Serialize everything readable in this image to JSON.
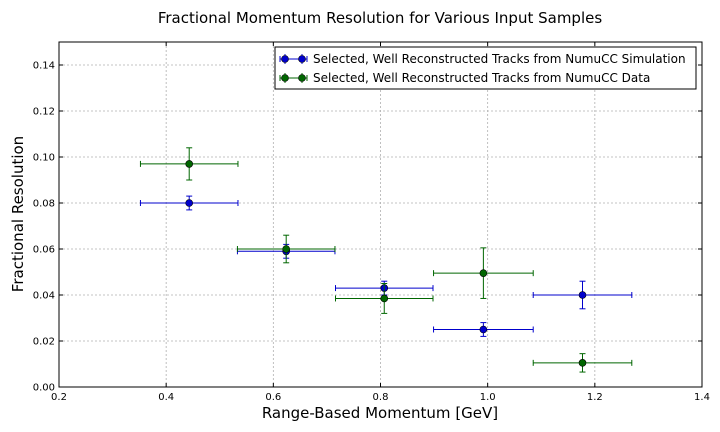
{
  "chart_data": {
    "type": "scatter",
    "title": "Fractional Momentum Resolution for Various Input Samples",
    "xlabel": "Range-Based Momentum [GeV]",
    "ylabel": "Fractional Resolution",
    "xlim": [
      0.2,
      1.4
    ],
    "ylim": [
      0.0,
      0.15
    ],
    "xticks": [
      "0.2",
      "0.4",
      "0.6",
      "0.8",
      "1.0",
      "1.2",
      "1.4"
    ],
    "yticks": [
      "0.00",
      "0.02",
      "0.04",
      "0.06",
      "0.08",
      "0.10",
      "0.12",
      "0.14"
    ],
    "grid": true,
    "legend_position": "top-right",
    "series": [
      {
        "name": "Selected, Well Reconstructed Tracks from NumuCC Simulation",
        "color": "#0000cc",
        "points": [
          {
            "x": 0.443,
            "y": 0.08,
            "xerr": 0.091,
            "yerr": 0.003
          },
          {
            "x": 0.624,
            "y": 0.059,
            "xerr": 0.091,
            "yerr": 0.003
          },
          {
            "x": 0.807,
            "y": 0.043,
            "xerr": 0.091,
            "yerr": 0.003
          },
          {
            "x": 0.992,
            "y": 0.025,
            "xerr": 0.093,
            "yerr": 0.003
          },
          {
            "x": 1.177,
            "y": 0.04,
            "xerr": 0.092,
            "yerr": 0.006
          }
        ]
      },
      {
        "name": "Selected, Well Reconstructed Tracks from NumuCC Data",
        "color": "#006600",
        "points": [
          {
            "x": 0.443,
            "y": 0.097,
            "xerr": 0.091,
            "yerr": 0.007
          },
          {
            "x": 0.624,
            "y": 0.06,
            "xerr": 0.091,
            "yerr": 0.006
          },
          {
            "x": 0.807,
            "y": 0.0385,
            "xerr": 0.091,
            "yerr": 0.0065
          },
          {
            "x": 0.992,
            "y": 0.0495,
            "xerr": 0.093,
            "yerr": 0.011
          },
          {
            "x": 1.177,
            "y": 0.0105,
            "xerr": 0.092,
            "yerr": 0.004
          }
        ]
      }
    ]
  }
}
